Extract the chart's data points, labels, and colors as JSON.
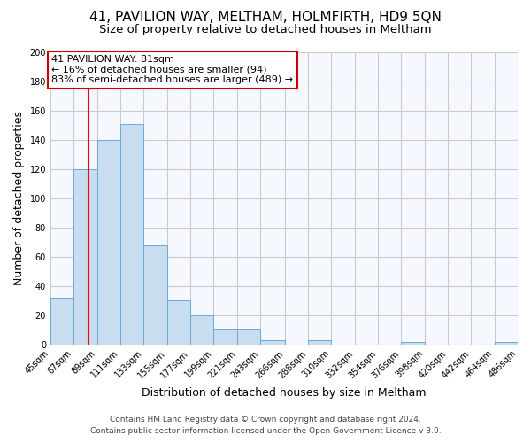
{
  "title": "41, PAVILION WAY, MELTHAM, HOLMFIRTH, HD9 5QN",
  "subtitle": "Size of property relative to detached houses in Meltham",
  "xlabel": "Distribution of detached houses by size in Meltham",
  "ylabel": "Number of detached properties",
  "bin_edges": [
    45,
    67,
    89,
    111,
    133,
    155,
    177,
    199,
    221,
    243,
    266,
    288,
    310,
    332,
    354,
    376,
    398,
    420,
    442,
    464,
    486
  ],
  "bin_labels": [
    "45sqm",
    "67sqm",
    "89sqm",
    "111sqm",
    "133sqm",
    "155sqm",
    "177sqm",
    "199sqm",
    "221sqm",
    "243sqm",
    "266sqm",
    "288sqm",
    "310sqm",
    "332sqm",
    "354sqm",
    "376sqm",
    "398sqm",
    "420sqm",
    "442sqm",
    "464sqm",
    "486sqm"
  ],
  "counts": [
    32,
    120,
    140,
    151,
    68,
    30,
    20,
    11,
    11,
    3,
    0,
    3,
    0,
    0,
    0,
    2,
    0,
    0,
    0,
    2
  ],
  "bar_color": "#c9ddf0",
  "bar_edge_color": "#6aaad4",
  "red_line_x": 81,
  "ylim": [
    0,
    200
  ],
  "yticks": [
    0,
    20,
    40,
    60,
    80,
    100,
    120,
    140,
    160,
    180,
    200
  ],
  "annotation_title": "41 PAVILION WAY: 81sqm",
  "annotation_line1": "← 16% of detached houses are smaller (94)",
  "annotation_line2": "83% of semi-detached houses are larger (489) →",
  "annotation_box_facecolor": "#ffffff",
  "annotation_box_edgecolor": "#cc0000",
  "footer_line1": "Contains HM Land Registry data © Crown copyright and database right 2024.",
  "footer_line2": "Contains public sector information licensed under the Open Government Licence v 3.0.",
  "plot_bg_color": "#f5f8ff",
  "fig_bg_color": "#ffffff",
  "grid_color": "#cccccc",
  "title_fontsize": 11,
  "subtitle_fontsize": 9.5,
  "axis_label_fontsize": 9,
  "tick_fontsize": 7,
  "annotation_fontsize": 8,
  "footer_fontsize": 6.5
}
